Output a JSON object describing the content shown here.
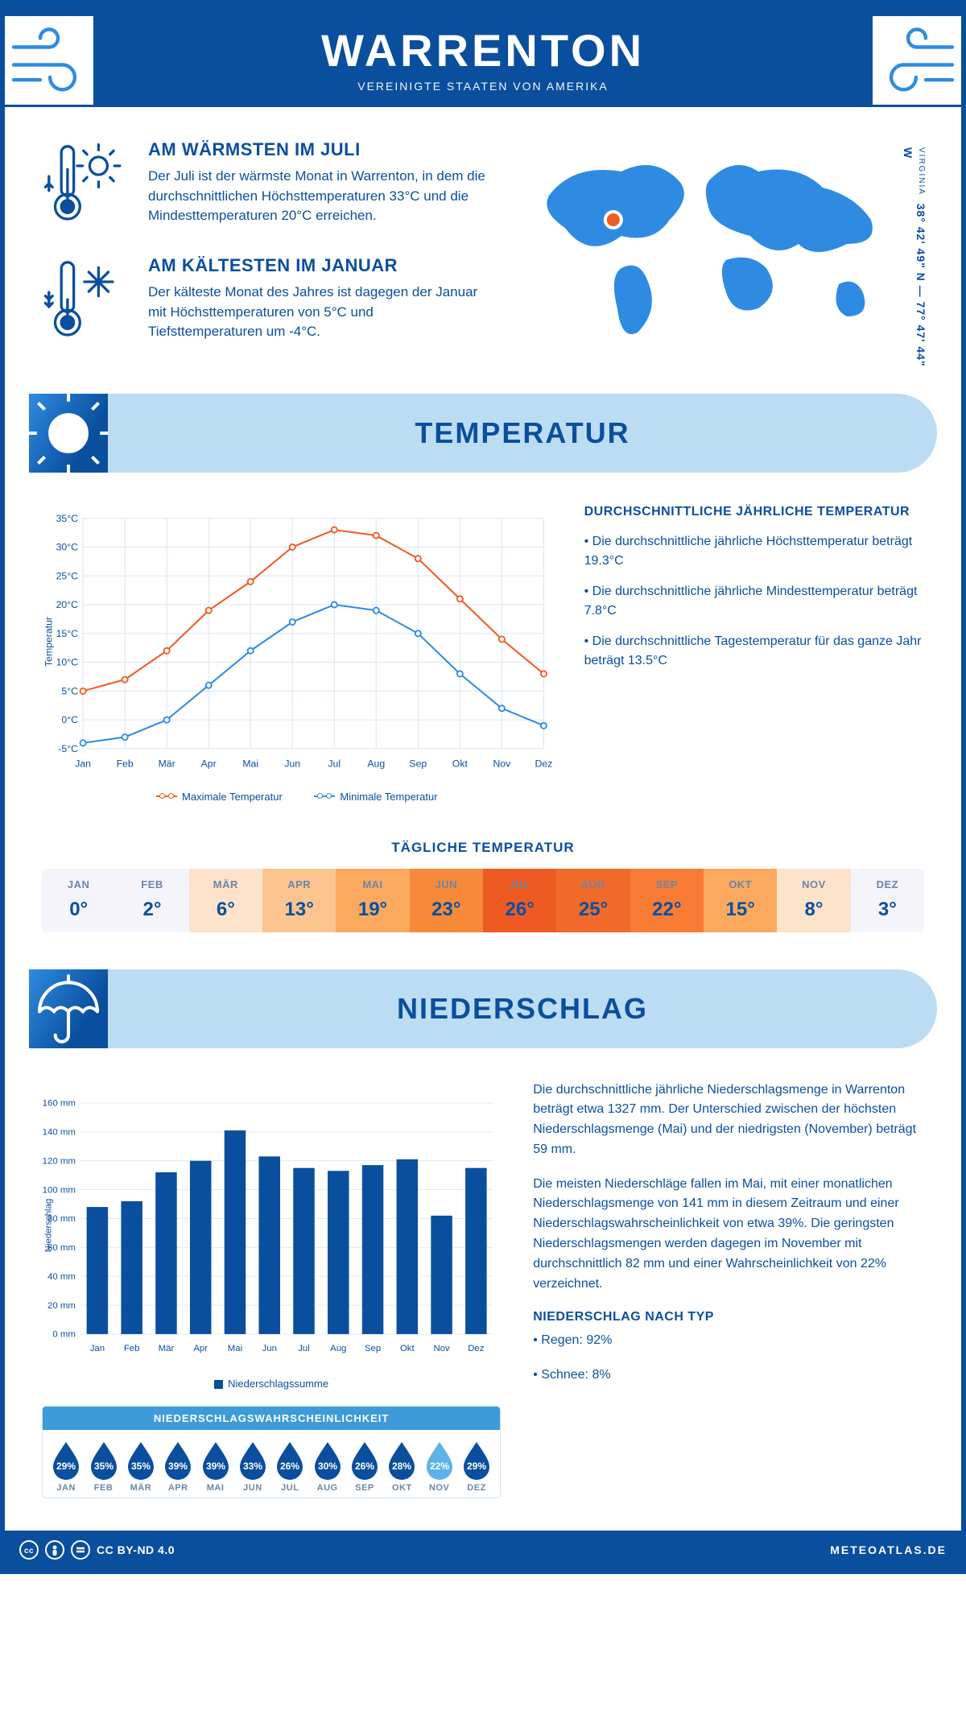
{
  "header": {
    "title": "WARRENTON",
    "subtitle": "VEREINIGTE STAATEN VON AMERIKA"
  },
  "intro": {
    "warm": {
      "title": "AM WÄRMSTEN IM JULI",
      "text": "Der Juli ist der wärmste Monat in Warrenton, in dem die durchschnittlichen Höchsttemperaturen 33°C und die Mindesttemperaturen 20°C erreichen."
    },
    "cold": {
      "title": "AM KÄLTESTEN IM JANUAR",
      "text": "Der kälteste Monat des Jahres ist dagegen der Januar mit Höchsttemperaturen von 5°C und Tiefsttemperaturen um -4°C."
    },
    "coords": "38° 42' 49\" N — 77° 47' 44\" W",
    "region": "VIRGINIA"
  },
  "sections": {
    "temperature": "TEMPERATUR",
    "precip": "NIEDERSCHLAG"
  },
  "months_short": [
    "Jan",
    "Feb",
    "Mär",
    "Apr",
    "Mai",
    "Jun",
    "Jul",
    "Aug",
    "Sep",
    "Okt",
    "Nov",
    "Dez"
  ],
  "months_upper": [
    "JAN",
    "FEB",
    "MÄR",
    "APR",
    "MAI",
    "JUN",
    "JUL",
    "AUG",
    "SEP",
    "OKT",
    "NOV",
    "DEZ"
  ],
  "temp_chart": {
    "type": "line",
    "ylabel": "Temperatur",
    "ylim": [
      -5,
      35
    ],
    "ytick_step": 5,
    "y_unit": "°C",
    "grid_color": "#d9e6f2",
    "line_width": 2,
    "marker_radius": 3.5,
    "series": {
      "max": {
        "label": "Maximale Temperatur",
        "color": "#f15a24",
        "values": [
          5,
          7,
          12,
          19,
          24,
          30,
          33,
          32,
          28,
          21,
          14,
          8
        ]
      },
      "min": {
        "label": "Minimale Temperatur",
        "color": "#2f8be2",
        "values": [
          -4,
          -3,
          0,
          6,
          12,
          17,
          20,
          19,
          15,
          8,
          2,
          -1
        ]
      }
    }
  },
  "temp_facts": {
    "title": "DURCHSCHNITTLICHE JÄHRLICHE TEMPERATUR",
    "bullets": [
      "• Die durchschnittliche jährliche Höchsttemperatur beträgt 19.3°C",
      "• Die durchschnittliche jährliche Mindesttemperatur beträgt 7.8°C",
      "• Die durchschnittliche Tagestemperatur für das ganze Jahr beträgt 13.5°C"
    ]
  },
  "daily_temp": {
    "title": "TÄGLICHE TEMPERATUR",
    "values": [
      "0°",
      "2°",
      "6°",
      "13°",
      "19°",
      "23°",
      "26°",
      "25°",
      "22°",
      "15°",
      "8°",
      "3°"
    ],
    "colors": [
      "#f5f4fb",
      "#f5f4fb",
      "#fde3ca",
      "#fcc48e",
      "#fba95f",
      "#f68a3a",
      "#ef5a22",
      "#f26a2a",
      "#f87c33",
      "#fba95f",
      "#fde3ca",
      "#f5f4fb"
    ]
  },
  "precip_chart": {
    "type": "bar",
    "ylabel": "Niederschlag",
    "ylim": [
      0,
      160
    ],
    "ytick_step": 20,
    "y_unit": " mm",
    "bar_color": "#0a4f9e",
    "grid_color": "#d9e6f2",
    "values": [
      88,
      92,
      112,
      120,
      141,
      123,
      115,
      113,
      117,
      121,
      82,
      115
    ],
    "legend_label": "Niederschlagssumme"
  },
  "precip_text": {
    "p1": "Die durchschnittliche jährliche Niederschlagsmenge in Warrenton beträgt etwa 1327 mm. Der Unterschied zwischen der höchsten Niederschlagsmenge (Mai) und der niedrigsten (November) beträgt 59 mm.",
    "p2": "Die meisten Niederschläge fallen im Mai, mit einer monatlichen Niederschlagsmenge von 141 mm in diesem Zeitraum und einer Niederschlagswahrscheinlichkeit von etwa 39%. Die geringsten Niederschlagsmengen werden dagegen im November mit durchschnittlich 82 mm und einer Wahrscheinlichkeit von 22% verzeichnet.",
    "type_title": "NIEDERSCHLAG NACH TYP",
    "type_bullets": [
      "• Regen: 92%",
      "• Schnee: 8%"
    ]
  },
  "precip_prob": {
    "title": "NIEDERSCHLAGSWAHRSCHEINLICHKEIT",
    "values": [
      "29%",
      "35%",
      "35%",
      "39%",
      "39%",
      "33%",
      "26%",
      "30%",
      "26%",
      "28%",
      "22%",
      "29%"
    ],
    "colors": [
      "#0a4f9e",
      "#0a4f9e",
      "#0a4f9e",
      "#0a4f9e",
      "#0a4f9e",
      "#0a4f9e",
      "#0a4f9e",
      "#0a4f9e",
      "#0a4f9e",
      "#0a4f9e",
      "#5cb3e8",
      "#0a4f9e"
    ]
  },
  "footer": {
    "license": "CC BY-ND 4.0",
    "brand": "METEOATLAS.DE"
  },
  "palette": {
    "primary": "#0a4f9e",
    "light_blue": "#bcdcf4",
    "mid_blue": "#3d9bd9",
    "wind_stroke": "#2f8be2"
  }
}
